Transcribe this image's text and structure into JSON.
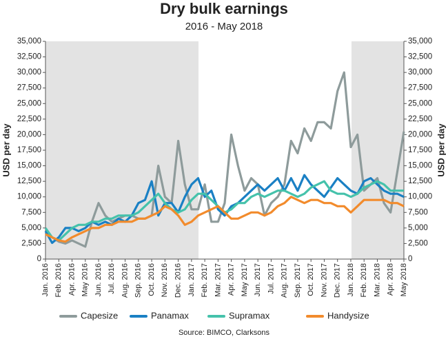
{
  "chart_data": {
    "type": "line",
    "title": "Dry bulk earnings",
    "subtitle": "2016 - May 2018",
    "y_label": "USD per day",
    "y2_label": "USD per day",
    "source": "Source: BIMCO, Clarksons",
    "categories": [
      "Jan. 2016",
      null,
      "Feb. 2016",
      null,
      "Apr. 2016",
      null,
      "May 2016",
      null,
      "Jun. 2016",
      null,
      "Jul. 2016",
      null,
      "Aug. 2016",
      null,
      "Sep. 2016",
      null,
      "Oct. 2016",
      null,
      "Nov. 2016",
      null,
      "Dec. 2016",
      null,
      "Jan. 2017",
      null,
      "Feb. 2017",
      null,
      "Mar. 2017",
      null,
      "Apr. 2017",
      null,
      "May 2017",
      null,
      "Jun. 2017",
      null,
      "Jul. 2017",
      null,
      "Aug. 2017",
      null,
      "Sep. 2017",
      null,
      "Oct. 2017",
      null,
      "Nov. 2017",
      null,
      "Dec. 2017",
      null,
      "Jan. 2018",
      null,
      "Feb. 2018",
      null,
      "Mar. 2018",
      null,
      "Apr. 2018",
      null,
      "May 2018"
    ],
    "series": [
      {
        "name": "Capesize",
        "color": "#8e9b9b",
        "values": [
          4500,
          3500,
          2800,
          2500,
          3000,
          2500,
          2000,
          6000,
          9000,
          7000,
          6000,
          6500,
          7000,
          7000,
          6500,
          6500,
          7000,
          15000,
          10000,
          9000,
          19000,
          12000,
          8000,
          8000,
          12000,
          6000,
          6000,
          9000,
          20000,
          15000,
          11000,
          13000,
          12000,
          7000,
          9000,
          10000,
          12000,
          19000,
          17000,
          21000,
          19000,
          22000,
          22000,
          21000,
          27000,
          30000,
          18000,
          20000,
          11000,
          12000,
          13000,
          9000,
          7500,
          14000,
          20500
        ]
      },
      {
        "name": "Panamax",
        "color": "#1a80c4",
        "values": [
          4500,
          2600,
          3500,
          5000,
          5000,
          4500,
          5000,
          6000,
          5500,
          6000,
          5500,
          6500,
          6000,
          7000,
          9000,
          9500,
          12500,
          7000,
          9000,
          9000,
          7500,
          10000,
          12000,
          13000,
          10000,
          11000,
          8000,
          7000,
          8500,
          9000,
          10000,
          11000,
          12000,
          11000,
          12000,
          13000,
          11000,
          13000,
          11000,
          13500,
          12000,
          11000,
          10000,
          11500,
          13000,
          12000,
          11000,
          10500,
          12500,
          13000,
          12000,
          11000,
          10500,
          10500,
          10000
        ]
      },
      {
        "name": "Supramax",
        "color": "#45c2ab",
        "values": [
          5000,
          3500,
          3000,
          4000,
          5000,
          5500,
          5500,
          6000,
          6000,
          6500,
          6500,
          7000,
          7000,
          7000,
          7500,
          8500,
          9500,
          10500,
          9000,
          8000,
          7500,
          8000,
          9500,
          10500,
          10500,
          9500,
          8500,
          7500,
          8000,
          9000,
          9000,
          10000,
          10500,
          10000,
          10500,
          11000,
          11000,
          10500,
          10000,
          10500,
          11500,
          12000,
          12500,
          11000,
          10500,
          10500,
          10000,
          10500,
          11500,
          12000,
          12500,
          12000,
          11000,
          11000,
          11000
        ]
      },
      {
        "name": "Handysize",
        "color": "#f28b2c",
        "values": [
          4000,
          3500,
          3000,
          2800,
          3500,
          4000,
          4500,
          5000,
          5000,
          5500,
          5500,
          6000,
          6000,
          6000,
          6500,
          6500,
          7000,
          7500,
          8500,
          8000,
          7000,
          5500,
          6000,
          7000,
          7500,
          8000,
          8500,
          7500,
          6500,
          6500,
          7000,
          7500,
          7500,
          7000,
          7500,
          8500,
          9000,
          10000,
          9500,
          9000,
          9500,
          9500,
          9000,
          9000,
          8500,
          8500,
          7500,
          8500,
          9500,
          9500,
          9500,
          9500,
          9000,
          9000,
          8500
        ]
      }
    ],
    "ylim": [
      0,
      35000
    ],
    "yticks": [
      0,
      {
        "value": 2500,
        "label": "2,500"
      },
      {
        "value": 5000,
        "label": "5,000"
      },
      {
        "value": 7500,
        "label": "7,500"
      },
      {
        "value": 10000,
        "label": "10,000"
      },
      {
        "value": 12500,
        "label": "12,500"
      },
      {
        "value": 15000,
        "label": "15,000"
      },
      {
        "value": 17500,
        "label": "17,500"
      },
      {
        "value": 20000,
        "label": "20,000"
      },
      {
        "value": 22500,
        "label": "22,500"
      },
      {
        "value": 25000,
        "label": "25,000"
      },
      {
        "value": 27500,
        "label": "27,500"
      },
      {
        "value": 30000,
        "label": "30,000"
      },
      {
        "value": 32500,
        "label": "32,500"
      },
      {
        "value": 35000,
        "label": "35,000"
      }
    ],
    "y2lim": [
      0,
      35000
    ],
    "y2ticks": [
      0,
      {
        "value": 2500,
        "label": "2,500"
      },
      {
        "value": 5000,
        "label": "5,000"
      },
      {
        "value": 7500,
        "label": "7,500"
      },
      {
        "value": 10000,
        "label": "10,000"
      },
      {
        "value": 12500,
        "label": "12,500"
      },
      {
        "value": 15000,
        "label": "15,000"
      },
      {
        "value": 17500,
        "label": "17,500"
      },
      {
        "value": 20000,
        "label": "20,000"
      },
      {
        "value": 22500,
        "label": "22,500"
      },
      {
        "value": 25000,
        "label": "25,000"
      },
      {
        "value": 27500,
        "label": "27,500"
      },
      {
        "value": 30000,
        "label": "30,000"
      },
      {
        "value": 32500,
        "label": "32,500"
      },
      {
        "value": 35000,
        "label": "35,000"
      }
    ],
    "grid": false,
    "legend": "bottom"
  }
}
